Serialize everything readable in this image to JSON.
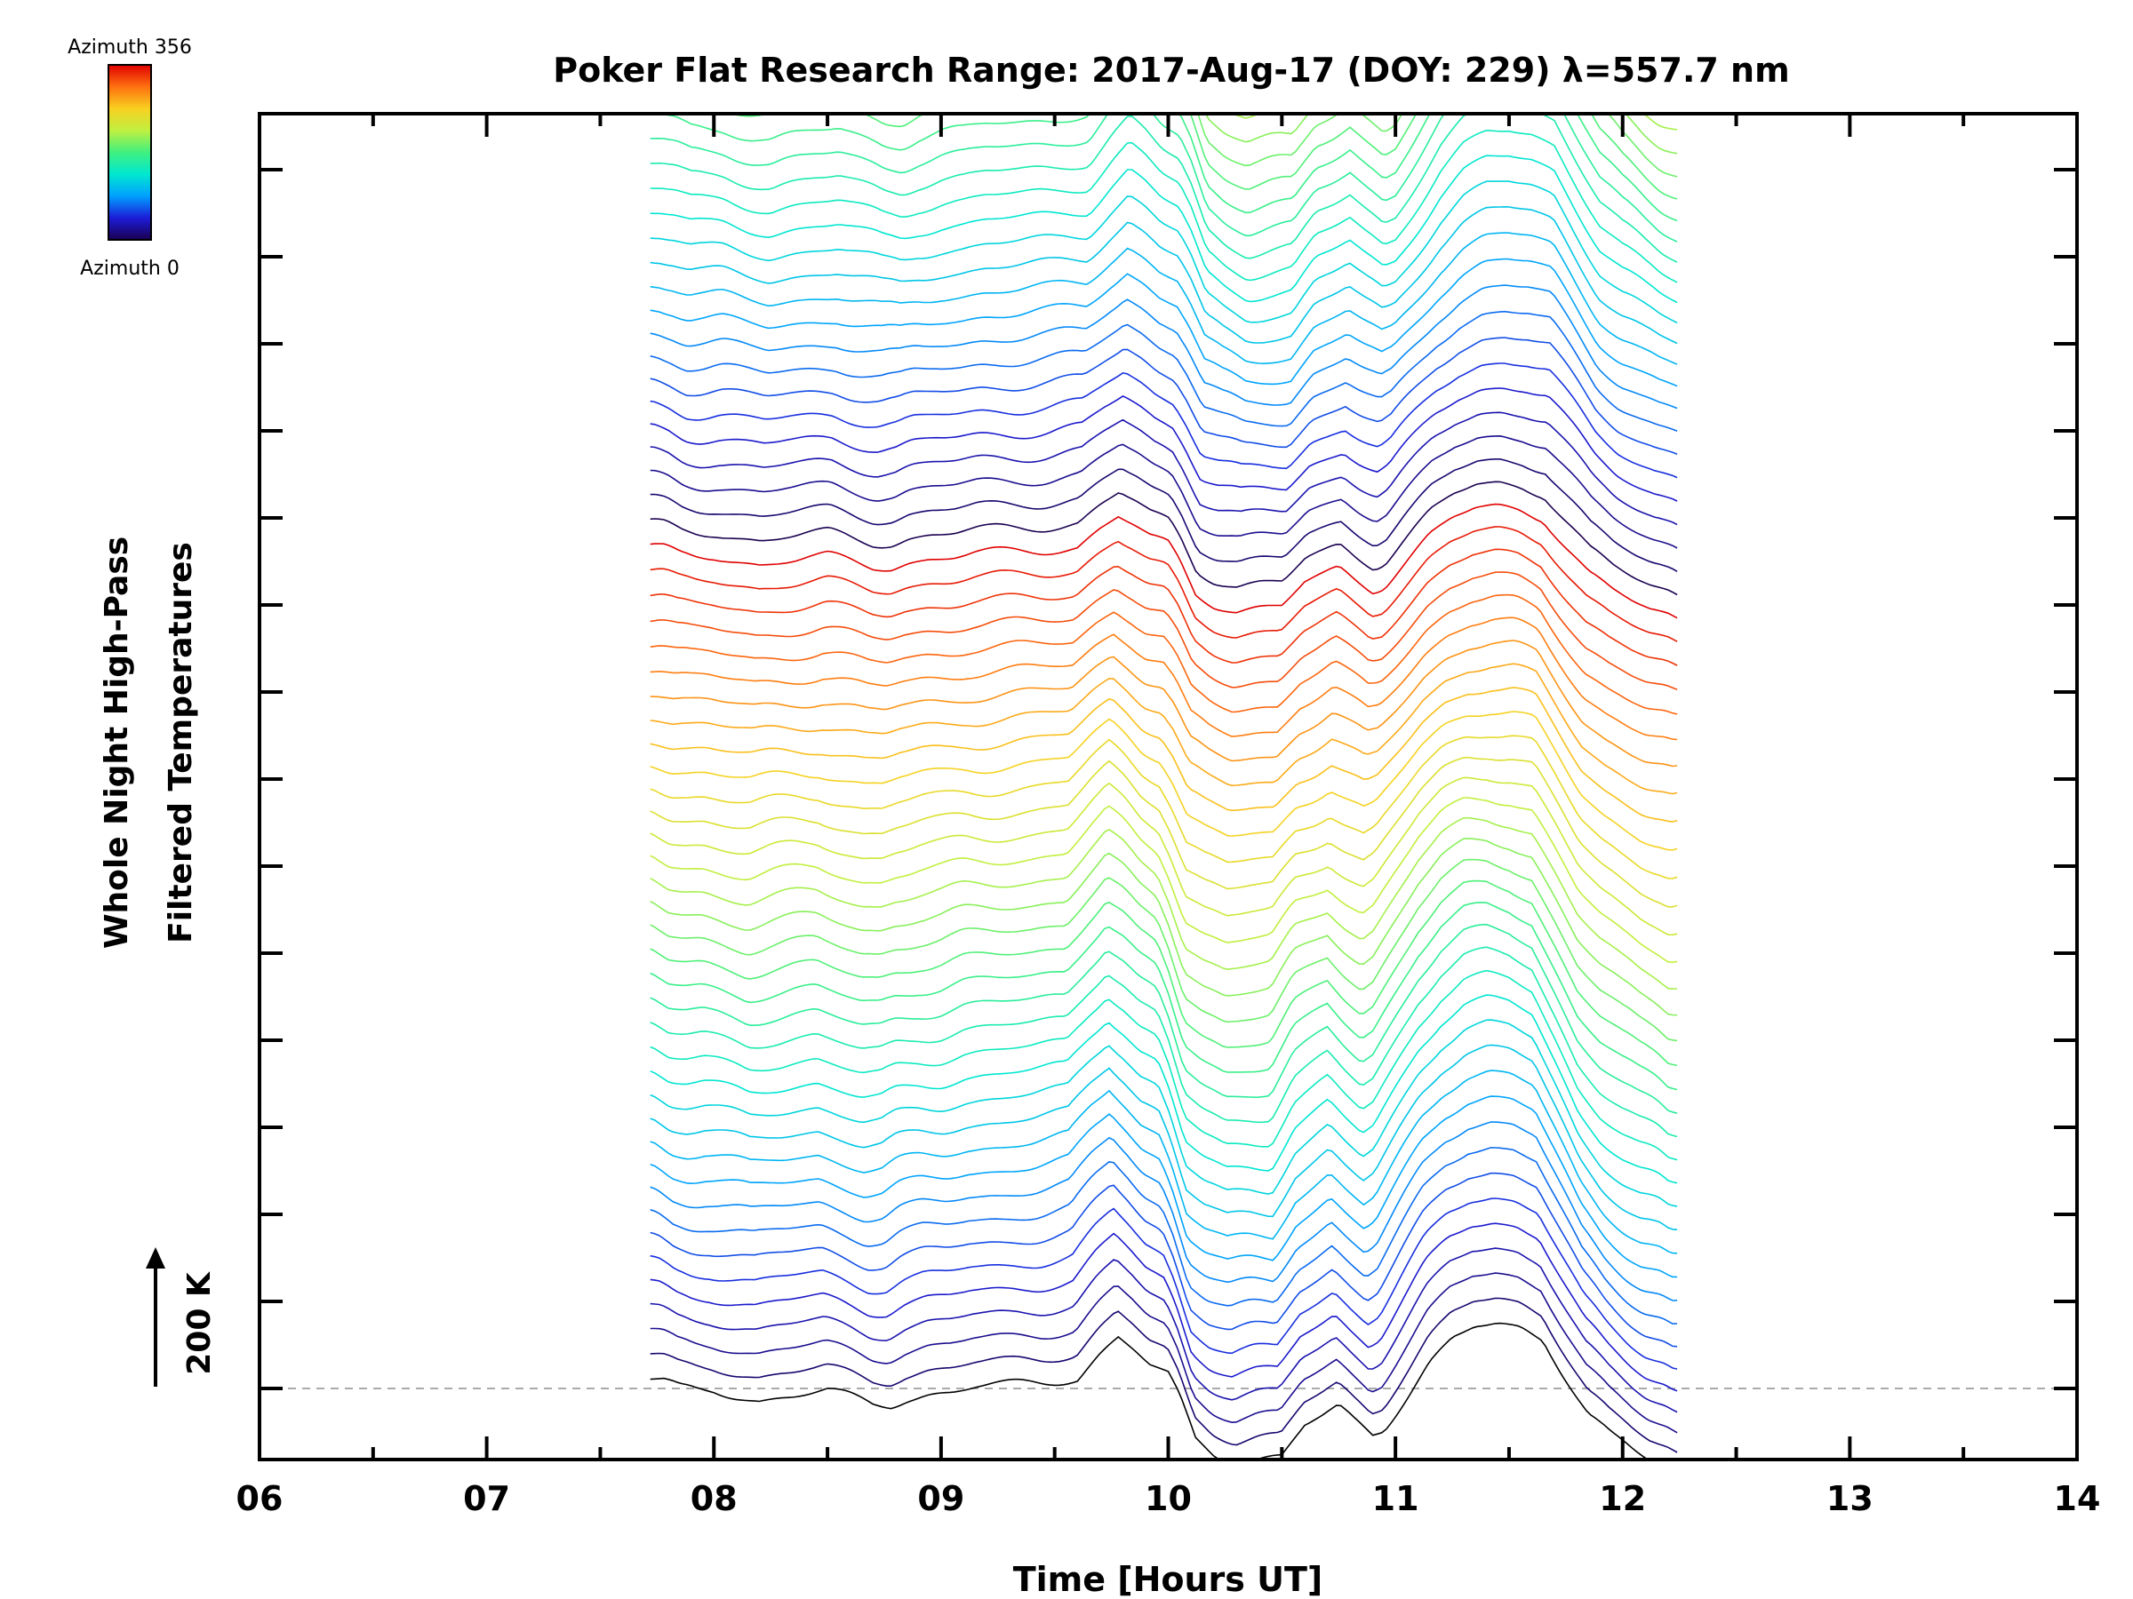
{
  "chart_data": {
    "type": "line",
    "title": "Poker Flat Research Range: 2017-Aug-17 (DOY: 229) λ=557.7 nm",
    "xlabel": "Time [Hours UT]",
    "ylabel": [
      "Whole Night High-Pass",
      "Filtered Temperatures"
    ],
    "xlim": [
      6,
      14
    ],
    "x_ticks": [
      "06",
      "07",
      "08",
      "09",
      "10",
      "11",
      "12",
      "13",
      "14"
    ],
    "scale_bar_label": "200 K",
    "baseline_style": "dashed gray",
    "grid": false,
    "colorbar": {
      "top_label": "Azimuth 356",
      "bottom_label": "Azimuth 0",
      "colormap": "rainbow",
      "colors": [
        "#1a0050",
        "#1c1cd8",
        "#00a0ff",
        "#00e8d0",
        "#40f080",
        "#c0f040",
        "#f8d020",
        "#ff7010",
        "#e00000"
      ],
      "placement": "top-left"
    },
    "series_count": 142,
    "azimuth_range_deg": [
      0,
      356
    ],
    "series_offset_K": 37.5,
    "time_range_h": [
      7.72,
      12.25
    ],
    "base_profile": {
      "x": [
        7.72,
        7.78,
        7.85,
        7.92,
        8.0,
        8.1,
        8.2,
        8.3,
        8.4,
        8.5,
        8.6,
        8.7,
        8.78,
        8.85,
        8.95,
        9.05,
        9.15,
        9.3,
        9.45,
        9.6,
        9.7,
        9.78,
        9.85,
        9.92,
        10.0,
        10.05,
        10.12,
        10.2,
        10.3,
        10.4,
        10.5,
        10.6,
        10.68,
        10.75,
        10.82,
        10.9,
        10.95,
        11.05,
        11.15,
        11.25,
        11.35,
        11.45,
        11.55,
        11.65,
        11.75,
        11.85,
        11.95,
        12.05,
        12.12,
        12.2,
        12.25
      ],
      "y": [
        15,
        10,
        -2,
        -5,
        -5,
        -12,
        -18,
        -12,
        -8,
        -5,
        -15,
        -25,
        -25,
        -15,
        -8,
        -5,
        2,
        5,
        10,
        18,
        55,
        80,
        60,
        35,
        20,
        -15,
        -80,
        -100,
        -115,
        -110,
        -108,
        -60,
        -45,
        -30,
        -50,
        -70,
        -60,
        -10,
        40,
        75,
        95,
        100,
        95,
        80,
        20,
        -40,
        -75,
        -100,
        -115,
        -125,
        -135
      ]
    }
  }
}
